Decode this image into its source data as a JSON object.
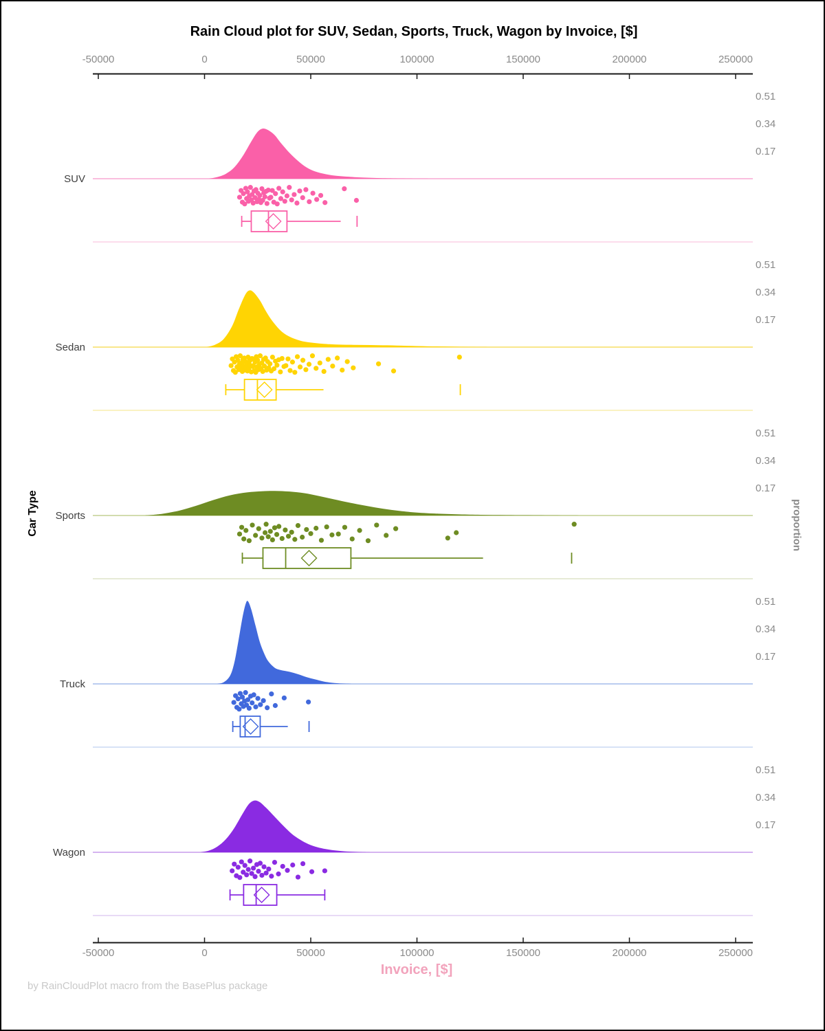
{
  "title": "Rain Cloud plot for SUV, Sedan, Sports, Truck, Wagon by Invoice, [$]",
  "footer": "by RainCloudPlot macro from the BasePlus package",
  "x_axis": {
    "label": "Invoice, [$]",
    "tick_values": [
      -50000,
      0,
      50000,
      100000,
      150000,
      200000,
      250000
    ],
    "tick_labels": [
      "-50000",
      "0",
      "50000",
      "100000",
      "150000",
      "200000",
      "250000"
    ]
  },
  "y_axis": {
    "label": "Car Type"
  },
  "right_axis": {
    "label": "proportion",
    "tick_labels": [
      "0.51",
      "0.34",
      "0.17"
    ]
  },
  "colors": {
    "axis": "#1A1A1A",
    "tick_text": "#8A8A8A",
    "category_text": "#3F3F3F",
    "footer_text": "#C9C9C9",
    "x_label_text": "#F2A3BC"
  },
  "jitter_pattern": [
    0.15,
    -0.6,
    0.7,
    -0.25,
    0.9,
    -0.85,
    0.3,
    -0.45,
    0.6,
    0.0,
    -0.95,
    0.45,
    -0.15,
    0.8,
    -0.55,
    0.2,
    -0.7,
    0.65,
    -0.3,
    0.4,
    -0.05,
    0.75,
    -0.8,
    0.5,
    -0.35,
    0.1,
    -0.5,
    0.85,
    -0.65,
    0.25
  ],
  "chart_data": {
    "type": "raincloud",
    "xlabel": "Invoice, [$]",
    "ylabel": "Car Type",
    "right_label": "proportion",
    "xlim": [
      -50000,
      250000
    ],
    "proportion_ticks": [
      0.51,
      0.34,
      0.17
    ],
    "categories": [
      "SUV",
      "Sedan",
      "Sports",
      "Truck",
      "Wagon"
    ],
    "series": [
      {
        "id": "suv",
        "name": "SUV",
        "color": "#FA60A8",
        "baseline_color": "#F9A9D3",
        "separator_color": "#FBD1E6",
        "density": [
          [
            2000,
            0
          ],
          [
            6000,
            0.01
          ],
          [
            10000,
            0.03
          ],
          [
            14000,
            0.07
          ],
          [
            18000,
            0.14
          ],
          [
            22000,
            0.23
          ],
          [
            25000,
            0.29
          ],
          [
            27500,
            0.31
          ],
          [
            30000,
            0.3
          ],
          [
            33000,
            0.27
          ],
          [
            36000,
            0.22
          ],
          [
            40000,
            0.16
          ],
          [
            44000,
            0.11
          ],
          [
            48000,
            0.07
          ],
          [
            52000,
            0.045
          ],
          [
            57000,
            0.028
          ],
          [
            62000,
            0.018
          ],
          [
            68000,
            0.012
          ],
          [
            75000,
            0.007
          ],
          [
            85000,
            0.003
          ],
          [
            95000,
            0.001
          ],
          [
            108000,
            0
          ]
        ],
        "points": [
          16500,
          17200,
          17800,
          18300,
          18900,
          19400,
          19800,
          20200,
          20700,
          21100,
          21600,
          22000,
          22400,
          22900,
          23300,
          23800,
          24200,
          24700,
          25100,
          25600,
          26000,
          26500,
          27000,
          27400,
          27900,
          28400,
          28900,
          29400,
          30000,
          30600,
          31200,
          31900,
          32600,
          33400,
          34200,
          35000,
          35900,
          36800,
          37800,
          38800,
          39900,
          41000,
          42200,
          43500,
          44800,
          46200,
          47700,
          49300,
          51000,
          52800,
          54700,
          56700,
          65800,
          71500
        ],
        "box": {
          "whisker_low": 17500,
          "q1": 22000,
          "median": 30100,
          "mean": 32400,
          "q3": 38800,
          "whisker_high": 64100,
          "far": 71800,
          "capped_high": false
        }
      },
      {
        "id": "sedan",
        "name": "Sedan",
        "color": "#FFD403",
        "baseline_color": "#F7DE63",
        "separator_color": "#F8EEAE",
        "density": [
          [
            1000,
            0
          ],
          [
            5000,
            0.015
          ],
          [
            9000,
            0.05
          ],
          [
            13000,
            0.13
          ],
          [
            16000,
            0.23
          ],
          [
            19000,
            0.32
          ],
          [
            21000,
            0.35
          ],
          [
            23000,
            0.34
          ],
          [
            26000,
            0.29
          ],
          [
            29000,
            0.22
          ],
          [
            32000,
            0.16
          ],
          [
            36000,
            0.1
          ],
          [
            40000,
            0.065
          ],
          [
            45000,
            0.04
          ],
          [
            50000,
            0.028
          ],
          [
            56000,
            0.02
          ],
          [
            62000,
            0.016
          ],
          [
            70000,
            0.014
          ],
          [
            78000,
            0.013
          ],
          [
            86000,
            0.011
          ],
          [
            95000,
            0.008
          ],
          [
            105000,
            0.005
          ],
          [
            115000,
            0.003
          ],
          [
            125000,
            0.001
          ],
          [
            135000,
            0
          ]
        ],
        "points": [
          12500,
          13100,
          13600,
          14100,
          14500,
          14900,
          15300,
          15700,
          16100,
          16400,
          16800,
          17100,
          17500,
          17800,
          18100,
          18400,
          18700,
          19000,
          19300,
          19600,
          19900,
          20200,
          20500,
          20800,
          21100,
          21400,
          21700,
          22000,
          22300,
          22600,
          22900,
          23200,
          23500,
          23800,
          24100,
          24400,
          24700,
          25000,
          25400,
          25800,
          26200,
          26600,
          27000,
          27400,
          27800,
          28200,
          28700,
          29200,
          29700,
          30200,
          30800,
          31400,
          32000,
          32700,
          33400,
          34100,
          34900,
          35700,
          36500,
          37400,
          38300,
          39300,
          40300,
          41400,
          42500,
          43700,
          45000,
          46300,
          47700,
          49200,
          50800,
          52500,
          54300,
          56200,
          58200,
          60300,
          62500,
          64800,
          67200,
          70000,
          81900,
          89000,
          120000
        ],
        "box": {
          "whisker_low": 10000,
          "q1": 18800,
          "median": 24900,
          "mean": 28200,
          "q3": 33700,
          "whisker_high": 56000,
          "far": 120400,
          "capped_high": false
        }
      },
      {
        "id": "sports",
        "name": "Sports",
        "color": "#6E8C23",
        "baseline_color": "#C4D093",
        "separator_color": "#DEE4C8",
        "density": [
          [
            -28000,
            0
          ],
          [
            -20000,
            0.01
          ],
          [
            -12000,
            0.03
          ],
          [
            -4000,
            0.06
          ],
          [
            4000,
            0.095
          ],
          [
            12000,
            0.125
          ],
          [
            20000,
            0.143
          ],
          [
            27000,
            0.15
          ],
          [
            33000,
            0.152
          ],
          [
            40000,
            0.148
          ],
          [
            47000,
            0.138
          ],
          [
            54000,
            0.12
          ],
          [
            61000,
            0.1
          ],
          [
            68000,
            0.08
          ],
          [
            76000,
            0.06
          ],
          [
            84000,
            0.042
          ],
          [
            92000,
            0.028
          ],
          [
            100000,
            0.018
          ],
          [
            110000,
            0.011
          ],
          [
            120000,
            0.007
          ],
          [
            130000,
            0.0045
          ],
          [
            142000,
            0.0028
          ],
          [
            155000,
            0.0015
          ],
          [
            170000,
            0.0006
          ],
          [
            185000,
            0
          ]
        ],
        "points": [
          16500,
          17500,
          18500,
          19500,
          21000,
          22500,
          24000,
          25500,
          27000,
          28500,
          29000,
          30000,
          31000,
          32000,
          33000,
          34000,
          35000,
          36500,
          38000,
          39500,
          41000,
          42500,
          44000,
          46000,
          48000,
          50000,
          52500,
          55000,
          57500,
          60000,
          63000,
          66000,
          69500,
          73000,
          77000,
          81000,
          85500,
          90000,
          114500,
          118500,
          174000
        ],
        "box": {
          "whisker_low": 17800,
          "q1": 27500,
          "median": 38200,
          "mean": 49200,
          "q3": 68900,
          "whisker_high": 131100,
          "far": 172800,
          "capped_high": false
        }
      },
      {
        "id": "truck",
        "name": "Truck",
        "color": "#4169DC",
        "baseline_color": "#A3BBEB",
        "separator_color": "#CAD8F4",
        "density": [
          [
            6000,
            0
          ],
          [
            9000,
            0.01
          ],
          [
            12000,
            0.05
          ],
          [
            14000,
            0.13
          ],
          [
            16000,
            0.27
          ],
          [
            18000,
            0.42
          ],
          [
            19500,
            0.5
          ],
          [
            20500,
            0.51
          ],
          [
            22000,
            0.46
          ],
          [
            24000,
            0.36
          ],
          [
            26000,
            0.26
          ],
          [
            28000,
            0.19
          ],
          [
            30000,
            0.14
          ],
          [
            33000,
            0.1
          ],
          [
            36000,
            0.085
          ],
          [
            40000,
            0.075
          ],
          [
            44000,
            0.06
          ],
          [
            48000,
            0.042
          ],
          [
            52000,
            0.028
          ],
          [
            56000,
            0.015
          ],
          [
            60000,
            0.007
          ],
          [
            65000,
            0.002
          ],
          [
            70000,
            0
          ]
        ],
        "points": [
          13800,
          14600,
          15200,
          15800,
          16300,
          16800,
          17300,
          17800,
          18300,
          18800,
          19300,
          19800,
          20400,
          21000,
          21700,
          22400,
          23200,
          24100,
          25100,
          26300,
          27700,
          29500,
          31500,
          33300,
          37500,
          48900
        ],
        "box": {
          "whisker_low": 13300,
          "q1": 16800,
          "median": 19100,
          "mean": 21700,
          "q3": 26200,
          "whisker_high": 39200,
          "far": 49200,
          "capped_high": false
        }
      },
      {
        "id": "wagon",
        "name": "Wagon",
        "color": "#8A2BE2",
        "baseline_color": "#C79CEC",
        "separator_color": "#E0CDF4",
        "density": [
          [
            -2000,
            0
          ],
          [
            2000,
            0.01
          ],
          [
            6000,
            0.035
          ],
          [
            10000,
            0.08
          ],
          [
            14000,
            0.15
          ],
          [
            18000,
            0.24
          ],
          [
            21000,
            0.3
          ],
          [
            23500,
            0.32
          ],
          [
            26000,
            0.31
          ],
          [
            29000,
            0.275
          ],
          [
            33000,
            0.22
          ],
          [
            37000,
            0.165
          ],
          [
            41000,
            0.115
          ],
          [
            45000,
            0.078
          ],
          [
            49000,
            0.05
          ],
          [
            53000,
            0.032
          ],
          [
            57000,
            0.02
          ],
          [
            61000,
            0.012
          ],
          [
            66000,
            0.006
          ],
          [
            72000,
            0.002
          ],
          [
            78000,
            0
          ]
        ],
        "points": [
          13000,
          14000,
          15000,
          15800,
          16600,
          17400,
          18200,
          19000,
          19800,
          20600,
          21400,
          22200,
          23000,
          23800,
          24600,
          25400,
          26200,
          27000,
          28000,
          29000,
          30200,
          31500,
          33000,
          34800,
          36800,
          39000,
          41500,
          44000,
          46300,
          50500,
          56600
        ],
        "box": {
          "whisker_low": 12000,
          "q1": 18400,
          "median": 24300,
          "mean": 26900,
          "q3": 34000,
          "whisker_high": 56600,
          "far": null,
          "capped_high": true
        }
      }
    ]
  }
}
